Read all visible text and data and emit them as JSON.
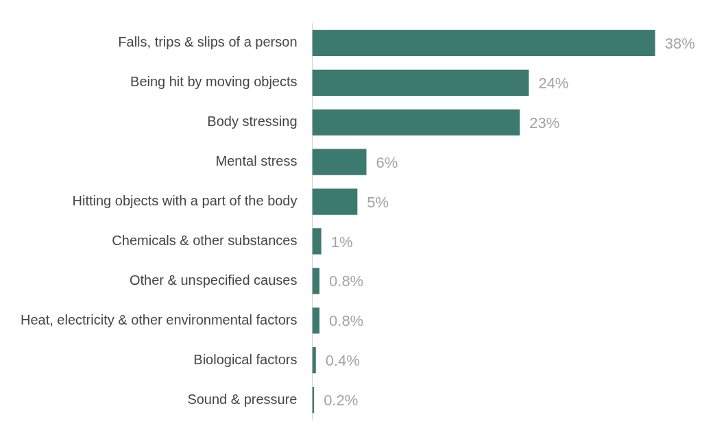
{
  "chart_data": {
    "type": "bar",
    "orientation": "horizontal",
    "tick_labels": "y",
    "color": "#3c7a70",
    "categories": [
      "Falls, trips & slips of a person",
      "Being hit by moving objects",
      "Body stressing",
      "Mental stress",
      "Hitting objects with a part of the body",
      "Chemicals & other substances",
      "Other & unspecified causes",
      "Heat, electricity & other environmental factors",
      "Biological factors",
      "Sound & pressure"
    ],
    "values": [
      38,
      24,
      23,
      6,
      5,
      1,
      0.8,
      0.8,
      0.4,
      0.2
    ],
    "value_labels": [
      "38%",
      "24%",
      "23%",
      "6%",
      "5%",
      "1%",
      "0.8%",
      "0.8%",
      "0.4%",
      "0.2%"
    ]
  }
}
